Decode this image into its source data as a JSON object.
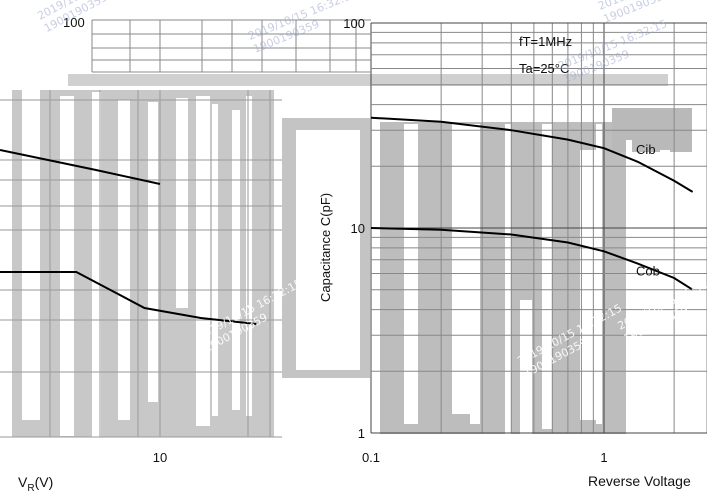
{
  "chart_data": [
    {
      "type": "line",
      "title": "",
      "xlabel": "V_R(V)",
      "x_scale": "log",
      "x_ticks": [
        "10"
      ],
      "series": [
        {
          "values": [
            [
              4,
              33
            ],
            [
              10,
              18
            ]
          ]
        },
        {
          "values": [
            [
              3,
              4.2
            ],
            [
              8,
              2.7
            ],
            [
              18,
              2.2
            ],
            [
              40,
              1.9
            ]
          ]
        }
      ]
    },
    {
      "type": "line",
      "title": "",
      "xlabel": "Reverse Voltage",
      "ylabel": "Capacitance C(pF)",
      "x_scale": "log",
      "y_scale": "log",
      "xlim": [
        0.1,
        2.4
      ],
      "ylim": [
        1,
        100
      ],
      "x_ticks": [
        "0.1",
        "1"
      ],
      "y_ticks": [
        "1",
        "10",
        "100"
      ],
      "grid": true,
      "conditions": [
        "fT=1MHz",
        "Ta=25°C"
      ],
      "series": [
        {
          "name": "Cib",
          "x": [
            0.1,
            0.2,
            0.4,
            0.7,
            1.0,
            1.4,
            2.0,
            2.4
          ],
          "y": [
            34.5,
            33,
            30,
            27,
            24.5,
            21,
            17,
            15
          ]
        },
        {
          "name": "Cob",
          "x": [
            0.1,
            0.2,
            0.4,
            0.7,
            1.0,
            1.4,
            2.0,
            2.4
          ],
          "y": [
            10,
            9.8,
            9.3,
            8.5,
            7.7,
            6.7,
            5.7,
            5.0
          ]
        }
      ]
    }
  ],
  "watermarks": [
    "2019/10/15 16:32:15",
    "1900190359"
  ],
  "colors": {
    "curve": "#000000",
    "grid": "#888888",
    "text": "#111111"
  }
}
